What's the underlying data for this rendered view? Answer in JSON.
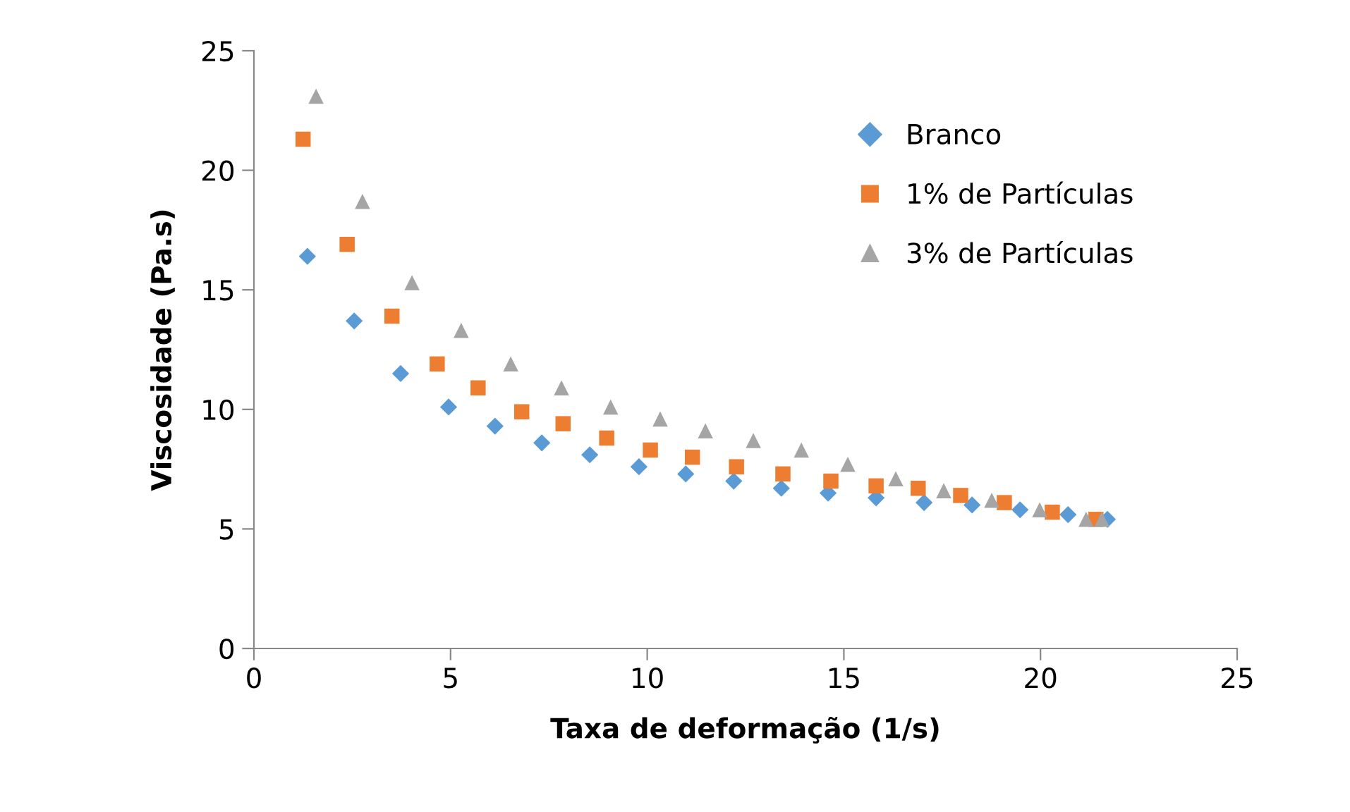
{
  "chart_data": {
    "type": "scatter",
    "xlabel": "Taxa de deformação (1/s)",
    "ylabel": "Viscosidade (Pa.s)",
    "xlim": [
      0,
      25
    ],
    "xticks": [
      0,
      5,
      10,
      15,
      20,
      25
    ],
    "ylim": [
      0,
      25
    ],
    "yticks": [
      0,
      5,
      10,
      15,
      20,
      25
    ],
    "grid": false,
    "legend": "top right",
    "series": [
      {
        "name": "Branco",
        "color": "#5b9bd5",
        "marker": "diamond",
        "x": [
          1.36,
          2.55,
          3.73,
          4.95,
          6.13,
          7.32,
          8.54,
          9.79,
          10.98,
          12.2,
          13.41,
          14.6,
          15.82,
          17.04,
          18.26,
          19.48,
          20.7,
          21.7
        ],
        "values": [
          16.4,
          13.7,
          11.5,
          10.1,
          9.3,
          8.6,
          8.1,
          7.6,
          7.3,
          7.0,
          6.7,
          6.5,
          6.3,
          6.1,
          6.0,
          5.8,
          5.6,
          5.4
        ]
      },
      {
        "name": "1% de Partículas",
        "color": "#ed7d31",
        "marker": "square",
        "x": [
          1.25,
          2.37,
          3.51,
          4.66,
          5.7,
          6.81,
          7.86,
          8.97,
          10.08,
          11.15,
          12.27,
          13.45,
          14.67,
          15.82,
          16.89,
          17.97,
          19.08,
          20.3,
          21.41
        ],
        "values": [
          21.3,
          16.9,
          13.9,
          11.9,
          10.9,
          9.9,
          9.4,
          8.8,
          8.3,
          8.0,
          7.6,
          7.3,
          7.0,
          6.8,
          6.7,
          6.4,
          6.1,
          5.7,
          5.4
        ]
      },
      {
        "name": "3% de Partículas",
        "color": "#a5a5a5",
        "marker": "triangle",
        "x": [
          1.58,
          2.76,
          4.02,
          5.27,
          6.53,
          7.82,
          9.07,
          10.33,
          11.48,
          12.7,
          13.92,
          15.1,
          16.32,
          17.54,
          18.76,
          19.98,
          21.16,
          21.56
        ],
        "values": [
          23.1,
          18.7,
          15.3,
          13.3,
          11.9,
          10.9,
          10.1,
          9.6,
          9.1,
          8.7,
          8.3,
          7.7,
          7.1,
          6.6,
          6.2,
          5.8,
          5.4,
          5.4
        ]
      }
    ]
  }
}
